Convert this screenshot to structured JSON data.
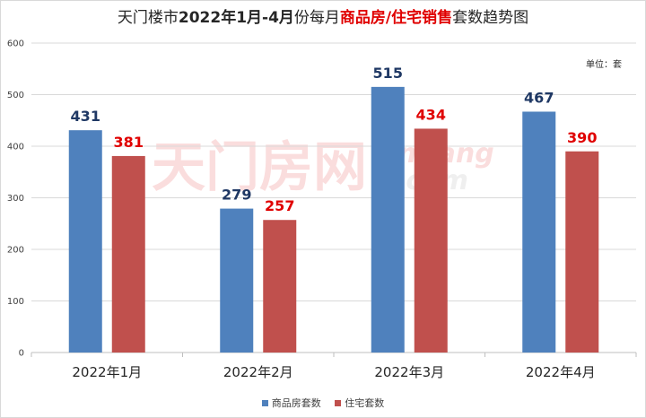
{
  "title": {
    "part1": "天门楼市",
    "part2": "2022年1月-4月",
    "part3": "份每月",
    "part4": "商品房/住宅销售",
    "part5": "套数趋势图"
  },
  "unit_label": "单位：套",
  "watermark": {
    "cn": "天门房网",
    "latin": "tmfang",
    "dotcom": ".com"
  },
  "colors": {
    "series1": "#4f81bd",
    "series2": "#c0504d",
    "label1": "#1f3864",
    "label2": "#e00000",
    "grid": "#d9d9d9"
  },
  "chart_data": {
    "type": "bar",
    "categories": [
      "2022年1月",
      "2022年2月",
      "2022年3月",
      "2022年4月"
    ],
    "series": [
      {
        "name": "商品房套数",
        "values": [
          431,
          279,
          515,
          467
        ]
      },
      {
        "name": "住宅套数",
        "values": [
          381,
          257,
          434,
          390
        ]
      }
    ],
    "ylim": [
      0,
      600
    ],
    "yticks": [
      "0",
      "100",
      "200",
      "300",
      "400",
      "500",
      "600"
    ],
    "grid": true,
    "legend_position": "bottom"
  }
}
